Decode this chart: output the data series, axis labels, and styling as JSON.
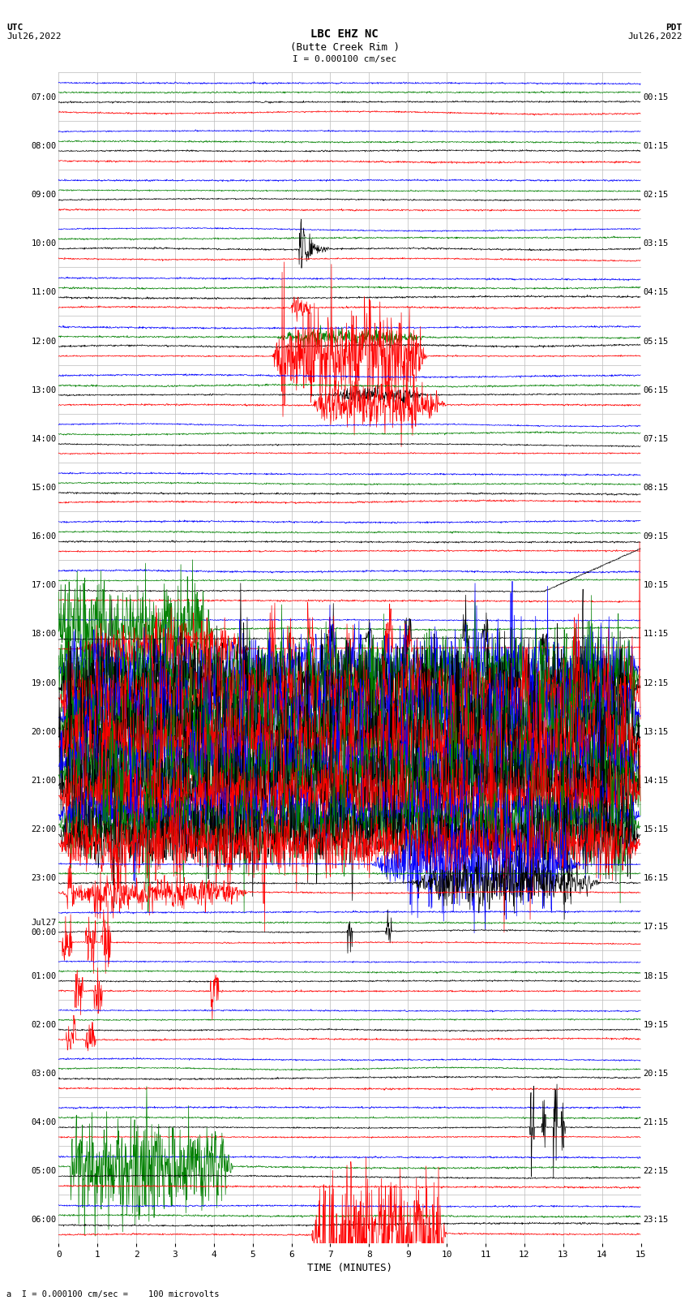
{
  "title_line1": "LBC EHZ NC",
  "title_line2": "(Butte Creek Rim )",
  "scale_text": "I = 0.000100 cm/sec",
  "bottom_label": "a  I = 0.000100 cm/sec =    100 microvolts",
  "left_label_line1": "UTC",
  "left_label_line2": "Jul26,2022",
  "right_label_line1": "PDT",
  "right_label_line2": "Jul26,2022",
  "xlabel": "TIME (MINUTES)",
  "utc_times": [
    "07:00",
    "08:00",
    "09:00",
    "10:00",
    "11:00",
    "12:00",
    "13:00",
    "14:00",
    "15:00",
    "16:00",
    "17:00",
    "18:00",
    "19:00",
    "20:00",
    "21:00",
    "22:00",
    "23:00",
    "Jul27\n00:00",
    "01:00",
    "02:00",
    "03:00",
    "04:00",
    "05:00",
    "06:00"
  ],
  "pdt_times": [
    "00:15",
    "01:15",
    "02:15",
    "03:15",
    "04:15",
    "05:15",
    "06:15",
    "07:15",
    "08:15",
    "09:15",
    "10:15",
    "11:15",
    "12:15",
    "13:15",
    "14:15",
    "15:15",
    "16:15",
    "17:15",
    "18:15",
    "19:15",
    "20:15",
    "21:15",
    "22:15",
    "23:15"
  ],
  "n_rows": 24,
  "n_minutes": 15,
  "bg_color": "#ffffff",
  "grid_color": "#bbbbbb",
  "trace_colors": [
    "blue",
    "green",
    "black",
    "red"
  ],
  "seed": 12345
}
